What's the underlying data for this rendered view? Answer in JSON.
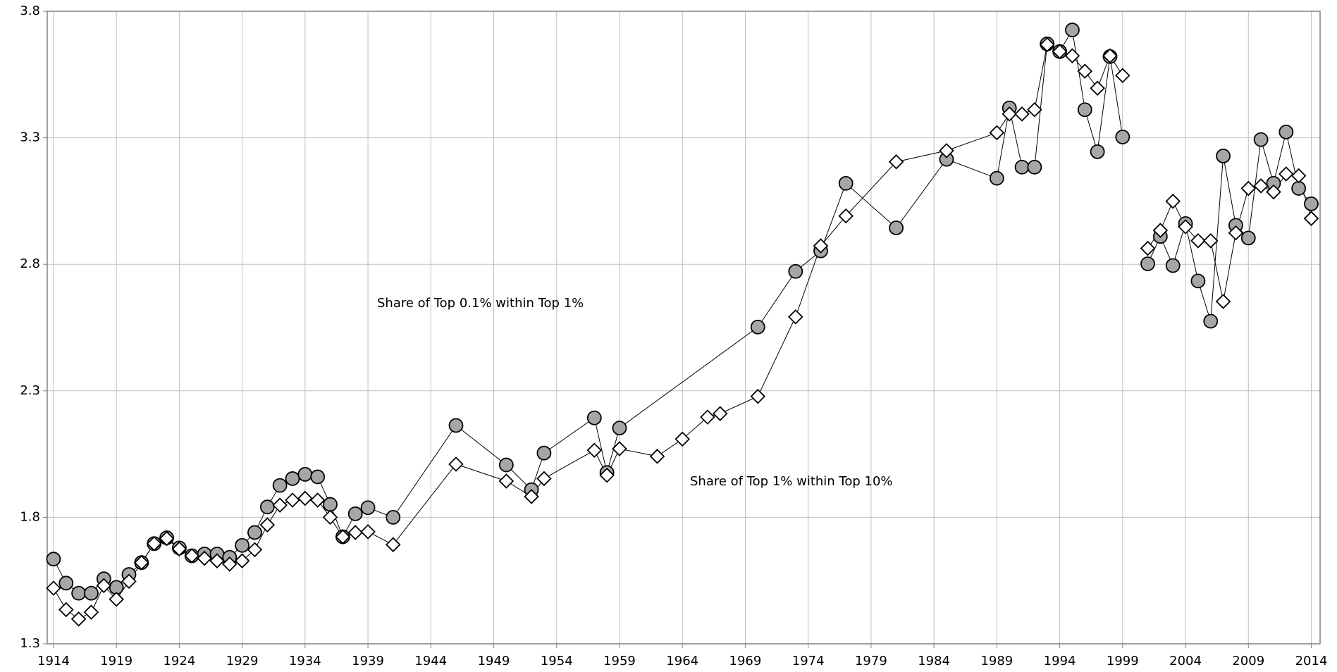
{
  "chart_data": {
    "type": "line",
    "annotations": [
      "Share of Top 0.1% within Top 1%",
      "Share of Top 1% within Top 10%"
    ],
    "xlim": [
      1913.5,
      2014.7
    ],
    "xticks": [
      1914,
      1919,
      1924,
      1929,
      1934,
      1939,
      1944,
      1949,
      1954,
      1959,
      1964,
      1969,
      1974,
      1979,
      1984,
      1989,
      1994,
      1999,
      2004,
      2009,
      2014
    ],
    "ylim": [
      1.3,
      3.8
    ],
    "yticks": [
      1.3,
      1.8,
      2.3,
      2.8,
      3.3,
      3.8
    ],
    "grid": true,
    "series": [
      {
        "marker": "circle",
        "color": "#a6a6a6",
        "x": [
          1914,
          1915,
          1916,
          1917,
          1918,
          1919,
          1920,
          1921,
          1922,
          1923,
          1924,
          1925,
          1926,
          1927,
          1928,
          1929,
          1930,
          1931,
          1932,
          1933,
          1934,
          1935,
          1936,
          1937,
          1938,
          1939,
          1941,
          1946,
          1950,
          1952,
          1953,
          1957,
          1958,
          1959,
          1970,
          1973,
          1975,
          1977,
          1981,
          1985,
          1989,
          1990,
          1991,
          1992,
          1993,
          1994,
          1995,
          1996,
          1997,
          1998,
          1999,
          2000,
          2001,
          2002,
          2003,
          2004,
          2005,
          2006,
          2007,
          2008,
          2009,
          2010,
          2011,
          2012,
          2013,
          2014
        ],
        "values": [
          1.635,
          1.54,
          1.5,
          1.5,
          1.557,
          1.523,
          1.574,
          1.621,
          1.696,
          1.719,
          1.679,
          1.648,
          1.655,
          1.655,
          1.642,
          1.689,
          1.74,
          1.841,
          1.926,
          1.953,
          1.97,
          1.96,
          1.851,
          1.723,
          1.814,
          1.838,
          1.8,
          2.163,
          2.007,
          1.909,
          2.054,
          2.193,
          1.977,
          2.153,
          2.552,
          2.772,
          2.853,
          3.12,
          2.944,
          3.215,
          3.14,
          3.418,
          3.184,
          3.184,
          3.671,
          3.641,
          3.726,
          3.411,
          3.245,
          3.621,
          3.303,
          null,
          2.802,
          2.91,
          2.795,
          2.961,
          2.734,
          2.575,
          3.228,
          2.954,
          2.904,
          3.293,
          3.12,
          3.323,
          3.1,
          3.039
        ]
      },
      {
        "marker": "diamond",
        "color": "#ffffff",
        "x": [
          1914,
          1915,
          1916,
          1917,
          1918,
          1919,
          1920,
          1921,
          1922,
          1923,
          1924,
          1925,
          1926,
          1927,
          1928,
          1929,
          1930,
          1931,
          1932,
          1933,
          1934,
          1935,
          1936,
          1937,
          1938,
          1939,
          1941,
          1946,
          1950,
          1952,
          1953,
          1957,
          1958,
          1959,
          1962,
          1964,
          1966,
          1967,
          1970,
          1973,
          1975,
          1977,
          1981,
          1985,
          1989,
          1990,
          1991,
          1992,
          1993,
          1994,
          1995,
          1996,
          1997,
          1998,
          1999,
          2000,
          2001,
          2002,
          2003,
          2004,
          2005,
          2006,
          2007,
          2008,
          2009,
          2010,
          2011,
          2012,
          2013,
          2014
        ],
        "values": [
          1.52,
          1.435,
          1.398,
          1.425,
          1.53,
          1.476,
          1.547,
          1.621,
          1.696,
          1.716,
          1.675,
          1.648,
          1.638,
          1.628,
          1.615,
          1.628,
          1.672,
          1.77,
          1.848,
          1.868,
          1.875,
          1.868,
          1.8,
          1.723,
          1.74,
          1.743,
          1.692,
          2.01,
          1.943,
          1.882,
          1.953,
          2.065,
          1.966,
          2.071,
          2.041,
          2.109,
          2.196,
          2.21,
          2.278,
          2.592,
          2.873,
          2.991,
          3.205,
          3.249,
          3.32,
          3.394,
          3.394,
          3.411,
          3.668,
          3.641,
          3.624,
          3.563,
          3.496,
          3.624,
          3.546,
          null,
          2.863,
          2.934,
          3.049,
          2.948,
          2.893,
          2.893,
          2.653,
          2.924,
          3.1,
          3.11,
          3.086,
          3.157,
          3.15,
          2.981
        ]
      }
    ]
  }
}
